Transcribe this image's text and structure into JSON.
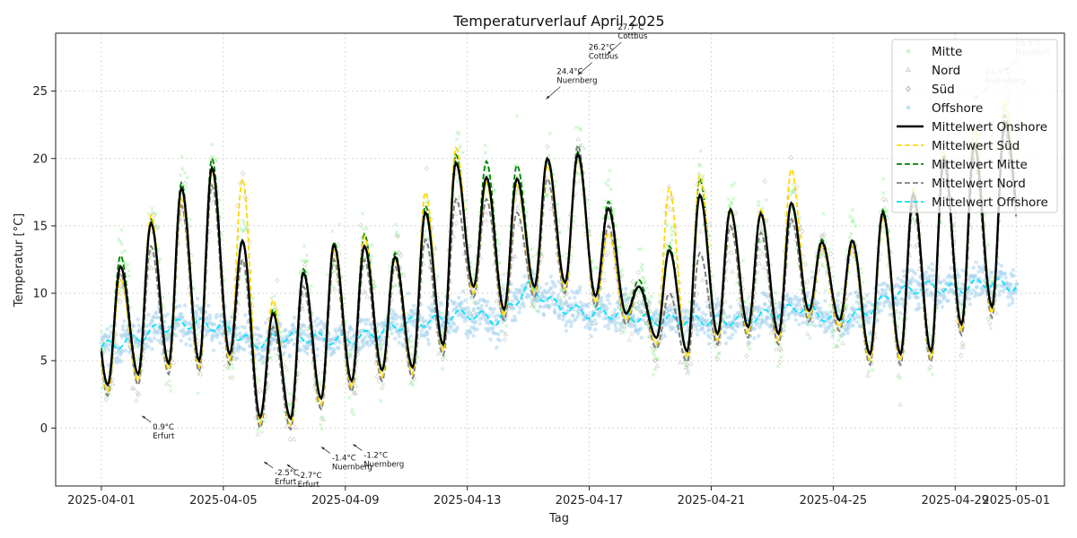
{
  "chart_data": {
    "type": "line",
    "title": "Temperaturverlauf April 2025",
    "xlabel": "Tag",
    "ylabel": "Temperatur [°C]",
    "x_range": [
      "2025-03-30T12:00",
      "2025-05-02T14:00"
    ],
    "ylim": [
      -4.3,
      29.3
    ],
    "x_ticks": [
      "2025-04-01",
      "2025-04-05",
      "2025-04-09",
      "2025-04-13",
      "2025-04-17",
      "2025-04-21",
      "2025-04-25",
      "2025-04-29",
      "2025-05-01"
    ],
    "y_ticks": [
      0,
      5,
      10,
      15,
      20,
      25
    ],
    "grid": true,
    "legend_position": "top-right",
    "colors": {
      "mitte_points": "#90ee90",
      "nord_points": "#b8b8b8",
      "sued_points": "#8a8a6a",
      "offshore_points": "#a8d4ec",
      "mean_onshore": "#000000",
      "mean_sued": "#ffd700",
      "mean_mitte": "#008000",
      "mean_nord": "#808080",
      "mean_offshore": "#00e5ff"
    },
    "legend": [
      {
        "key": "mitte",
        "label": "Mitte",
        "kind": "marker-x"
      },
      {
        "key": "nord",
        "label": "Nord",
        "kind": "marker-triangle"
      },
      {
        "key": "sued",
        "label": "Süd",
        "kind": "marker-diamond"
      },
      {
        "key": "offshore",
        "label": "Offshore",
        "kind": "marker-circle"
      },
      {
        "key": "mean_onshore",
        "label": "Mittelwert Onshore",
        "kind": "solid"
      },
      {
        "key": "mean_sued",
        "label": "Mittelwert Süd",
        "kind": "dashed"
      },
      {
        "key": "mean_mitte",
        "label": "Mittelwert Mitte",
        "kind": "dashed"
      },
      {
        "key": "mean_nord",
        "label": "Mittelwert Nord",
        "kind": "dashed"
      },
      {
        "key": "mean_offshore",
        "label": "Mittelwert Offshore",
        "kind": "dashed"
      }
    ],
    "daily": [
      {
        "date": "2025-04-01",
        "min": 3.2,
        "max": 12.0,
        "sued_max": 11.0,
        "mitte_max": 12.8,
        "nord_max": 11.5,
        "off": 6.0
      },
      {
        "date": "2025-04-02",
        "min": 4.0,
        "max": 15.2,
        "sued_max": 15.8,
        "mitte_max": 15.5,
        "nord_max": 13.5,
        "off": 6.5
      },
      {
        "date": "2025-04-03",
        "min": 4.8,
        "max": 17.8,
        "sued_max": 17.0,
        "mitte_max": 18.2,
        "nord_max": 16.5,
        "off": 7.5
      },
      {
        "date": "2025-04-04",
        "min": 5.0,
        "max": 19.3,
        "sued_max": 19.0,
        "mitte_max": 20.0,
        "nord_max": 18.0,
        "off": 7.8
      },
      {
        "date": "2025-04-05",
        "min": 5.5,
        "max": 13.9,
        "sued_max": 18.5,
        "mitte_max": 13.8,
        "nord_max": 12.5,
        "off": 7.5
      },
      {
        "date": "2025-04-06",
        "min": 0.8,
        "max": 8.5,
        "sued_max": 9.5,
        "mitte_max": 8.8,
        "nord_max": 7.5,
        "off": 6.2
      },
      {
        "date": "2025-04-07",
        "min": 0.7,
        "max": 11.5,
        "sued_max": 11.5,
        "mitte_max": 11.8,
        "nord_max": 10.5,
        "off": 6.8
      },
      {
        "date": "2025-04-08",
        "min": 2.2,
        "max": 13.6,
        "sued_max": 13.2,
        "mitte_max": 13.8,
        "nord_max": 12.5,
        "off": 6.7
      },
      {
        "date": "2025-04-09",
        "min": 3.5,
        "max": 13.5,
        "sued_max": 14.2,
        "mitte_max": 14.4,
        "nord_max": 12.5,
        "off": 6.5
      },
      {
        "date": "2025-04-10",
        "min": 4.3,
        "max": 12.7,
        "sued_max": 12.5,
        "mitte_max": 13.0,
        "nord_max": 12.0,
        "off": 7.0
      },
      {
        "date": "2025-04-11",
        "min": 4.5,
        "max": 16.0,
        "sued_max": 17.5,
        "mitte_max": 16.5,
        "nord_max": 14.0,
        "off": 7.8
      },
      {
        "date": "2025-04-12",
        "min": 6.2,
        "max": 19.7,
        "sued_max": 20.8,
        "mitte_max": 20.3,
        "nord_max": 17.0,
        "off": 8.0
      },
      {
        "date": "2025-04-13",
        "min": 10.5,
        "max": 18.6,
        "sued_max": 18.2,
        "mitte_max": 19.8,
        "nord_max": 17.0,
        "off": 8.5
      },
      {
        "date": "2025-04-14",
        "min": 8.8,
        "max": 18.5,
        "sued_max": 18.0,
        "mitte_max": 19.5,
        "nord_max": 16.0,
        "off": 8.0
      },
      {
        "date": "2025-04-15",
        "min": 10.5,
        "max": 20.0,
        "sued_max": 19.5,
        "mitte_max": 19.8,
        "nord_max": 18.5,
        "off": 10.5
      },
      {
        "date": "2025-04-16",
        "min": 10.8,
        "max": 20.3,
        "sued_max": 20.0,
        "mitte_max": 20.5,
        "nord_max": 21.0,
        "off": 9.0
      },
      {
        "date": "2025-04-17",
        "min": 9.8,
        "max": 16.3,
        "sued_max": 14.5,
        "mitte_max": 16.8,
        "nord_max": 15.0,
        "off": 8.5
      },
      {
        "date": "2025-04-18",
        "min": 8.5,
        "max": 10.5,
        "sued_max": 10.5,
        "mitte_max": 11.0,
        "nord_max": 10.5,
        "off": 8.5
      },
      {
        "date": "2025-04-19",
        "min": 6.7,
        "max": 13.2,
        "sued_max": 17.8,
        "mitte_max": 13.5,
        "nord_max": 10.0,
        "off": 8.0
      },
      {
        "date": "2025-04-20",
        "min": 5.7,
        "max": 17.3,
        "sued_max": 18.8,
        "mitte_max": 18.5,
        "nord_max": 13.0,
        "off": 8.0
      },
      {
        "date": "2025-04-21",
        "min": 7.0,
        "max": 16.2,
        "sued_max": 16.0,
        "mitte_max": 16.3,
        "nord_max": 15.0,
        "off": 8.0
      },
      {
        "date": "2025-04-22",
        "min": 7.5,
        "max": 15.9,
        "sued_max": 16.2,
        "mitte_max": 16.1,
        "nord_max": 14.5,
        "off": 8.0
      },
      {
        "date": "2025-04-23",
        "min": 7.0,
        "max": 16.7,
        "sued_max": 19.2,
        "mitte_max": 16.5,
        "nord_max": 15.5,
        "off": 8.5
      },
      {
        "date": "2025-04-24",
        "min": 8.7,
        "max": 13.8,
        "sued_max": 13.5,
        "mitte_max": 14.0,
        "nord_max": 13.5,
        "off": 9.0
      },
      {
        "date": "2025-04-25",
        "min": 8.0,
        "max": 13.9,
        "sued_max": 13.5,
        "mitte_max": 14.0,
        "nord_max": 13.5,
        "off": 8.0
      },
      {
        "date": "2025-04-26",
        "min": 5.5,
        "max": 16.0,
        "sued_max": 15.5,
        "mitte_max": 16.2,
        "nord_max": 15.8,
        "off": 8.5
      },
      {
        "date": "2025-04-27",
        "min": 5.5,
        "max": 17.3,
        "sued_max": 17.8,
        "mitte_max": 17.5,
        "nord_max": 16.5,
        "off": 10.0
      },
      {
        "date": "2025-04-28",
        "min": 5.7,
        "max": 20.0,
        "sued_max": 20.5,
        "mitte_max": 20.3,
        "nord_max": 19.5,
        "off": 10.5
      },
      {
        "date": "2025-04-29",
        "min": 7.7,
        "max": 21.0,
        "sued_max": 22.5,
        "mitte_max": 21.3,
        "nord_max": 20.0,
        "off": 10.3
      },
      {
        "date": "2025-04-30",
        "min": 9.0,
        "max": 22.7,
        "sued_max": 24.2,
        "mitte_max": 23.2,
        "nord_max": 22.0,
        "off": 10.8
      },
      {
        "date": "2025-05-01",
        "min": 14.0,
        "max": 14.0,
        "sued_max": 14.0,
        "mitte_max": 14.0,
        "nord_max": 14.0,
        "off": 10.5
      }
    ],
    "annotations": [
      {
        "label": "0.9°C",
        "station": "Erfurt",
        "x": "2025-04-02T08:00",
        "y": 0.9,
        "text_at": "below-right",
        "faded": false
      },
      {
        "label": "-2.5°C",
        "station": "Erfurt",
        "x": "2025-04-06T08:00",
        "y": -2.5,
        "text_at": "below-right",
        "faded": false
      },
      {
        "label": "-2.7°C",
        "station": "Erfurt",
        "x": "2025-04-07T02:00",
        "y": -2.7,
        "text_at": "below-right",
        "faded": false
      },
      {
        "label": "-1.4°C",
        "station": "Nuernberg",
        "x": "2025-04-08T05:00",
        "y": -1.4,
        "text_at": "below-right",
        "faded": false
      },
      {
        "label": "-1.2°C",
        "station": "Nuernberg",
        "x": "2025-04-09T06:00",
        "y": -1.2,
        "text_at": "below-right",
        "faded": false
      },
      {
        "label": "24.4°C",
        "station": "Nuernberg",
        "x": "2025-04-15T14:00",
        "y": 24.4,
        "text_at": "above-right",
        "faded": false
      },
      {
        "label": "26.2°C",
        "station": "Cottbus",
        "x": "2025-04-16T15:00",
        "y": 26.2,
        "text_at": "above-right",
        "faded": false
      },
      {
        "label": "27.7°C",
        "station": "Cottbus",
        "x": "2025-04-17T14:00",
        "y": 27.7,
        "text_at": "above-right",
        "faded": false
      },
      {
        "label": "24.4°C",
        "station": "Nuernberg",
        "x": "2025-04-29T15:00",
        "y": 24.4,
        "text_at": "above-right",
        "faded": true
      },
      {
        "label": "26.5°C",
        "station": "Frankfurt",
        "x": "2025-04-30T15:00",
        "y": 26.5,
        "text_at": "above-right",
        "faded": true
      }
    ]
  }
}
